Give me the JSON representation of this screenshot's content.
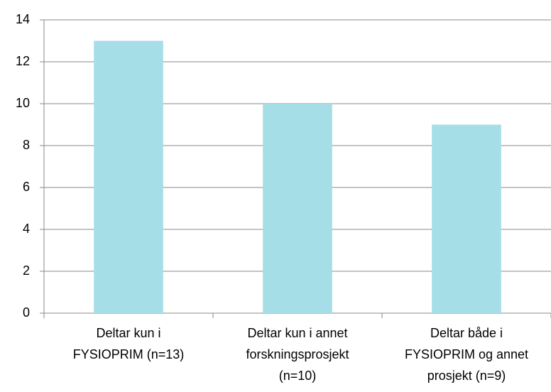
{
  "chart_data": {
    "type": "bar",
    "categories": [
      "Deltar kun i\nFYSIOPRIM (n=13)",
      "Deltar kun i annet\nforskningsprosjekt\n(n=10)",
      "Deltar både i\nFYSIOPRIM og annet\nprosjekt (n=9)"
    ],
    "values": [
      13,
      10,
      9
    ],
    "color": "#a5dee7",
    "ylim": [
      0,
      14
    ],
    "yticks": [
      0,
      2,
      4,
      6,
      8,
      10,
      12,
      14
    ],
    "grid": true
  }
}
